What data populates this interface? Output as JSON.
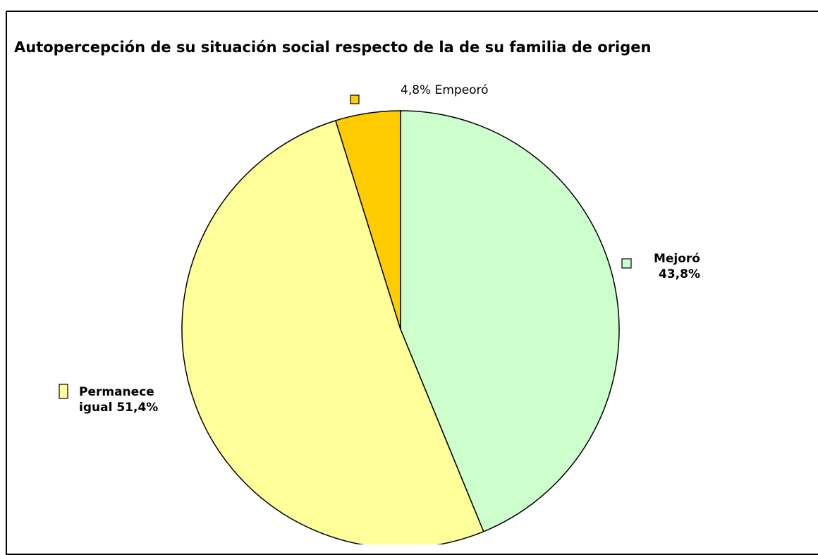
{
  "chart_data": {
    "type": "pie",
    "title": "Autopercepción de su situación social respecto de la de su familia de origen",
    "categories": [
      "Mejoró",
      "Permanece igual",
      "Empeoró"
    ],
    "values": [
      43.8,
      51.4,
      4.8
    ],
    "value_labels": [
      "43,8%",
      "51,4%",
      "4,8%"
    ],
    "colors": [
      "#ccffcc",
      "#ffff99",
      "#ffcc00"
    ]
  }
}
